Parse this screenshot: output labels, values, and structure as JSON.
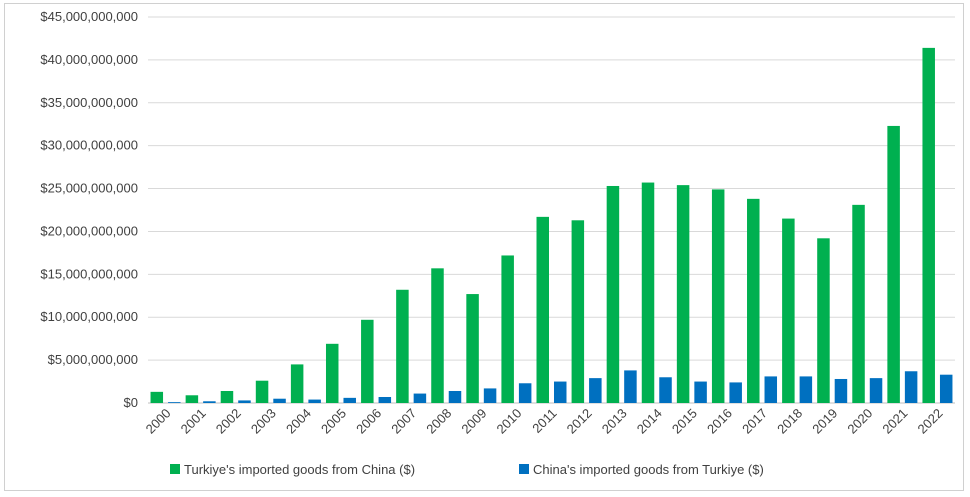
{
  "chart_data": {
    "type": "bar",
    "title": "",
    "xlabel": "",
    "ylabel": "",
    "ylim": [
      0,
      45000000000
    ],
    "yticks": [
      0,
      5000000000,
      10000000000,
      15000000000,
      20000000000,
      25000000000,
      30000000000,
      35000000000,
      40000000000,
      45000000000
    ],
    "ytick_labels": [
      "$0",
      "$5,000,000,000",
      "$10,000,000,000",
      "$15,000,000,000",
      "$20,000,000,000",
      "$25,000,000,000",
      "$30,000,000,000",
      "$35,000,000,000",
      "$40,000,000,000",
      "$45,000,000,000"
    ],
    "grid": true,
    "legend_position": "bottom",
    "categories": [
      "2000",
      "2001",
      "2002",
      "2003",
      "2004",
      "2005",
      "2006",
      "2007",
      "2008",
      "2009",
      "2010",
      "2011",
      "2012",
      "2013",
      "2014",
      "2015",
      "2016",
      "2017",
      "2018",
      "2019",
      "2020",
      "2021",
      "2022"
    ],
    "series": [
      {
        "name": "Turkiye's imported goods from China ($)",
        "color": "#00b050",
        "values": [
          1300000000,
          900000000,
          1400000000,
          2600000000,
          4500000000,
          6900000000,
          9700000000,
          13200000000,
          15700000000,
          12700000000,
          17200000000,
          21700000000,
          21300000000,
          25300000000,
          25700000000,
          25400000000,
          24900000000,
          23800000000,
          21500000000,
          19200000000,
          23100000000,
          32300000000,
          41400000000
        ]
      },
      {
        "name": "China's imported goods from Turkiye ($)",
        "color": "#0070c0",
        "values": [
          100000000,
          200000000,
          300000000,
          500000000,
          400000000,
          600000000,
          700000000,
          1100000000,
          1400000000,
          1700000000,
          2300000000,
          2500000000,
          2900000000,
          3800000000,
          3000000000,
          2500000000,
          2400000000,
          3100000000,
          3100000000,
          2800000000,
          2900000000,
          3700000000,
          3300000000
        ]
      }
    ]
  }
}
